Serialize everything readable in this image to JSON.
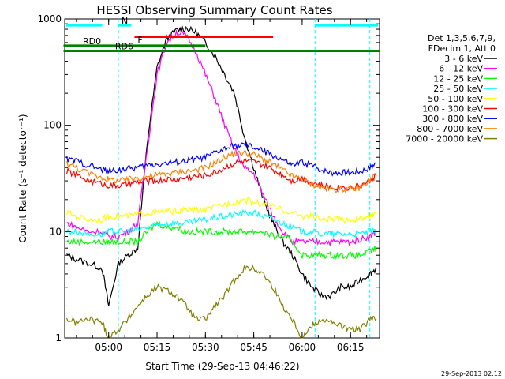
{
  "chart_data": {
    "type": "line",
    "title": "HESSI Observing Summary Count Rates",
    "xlabel": "Start Time (29-Sep-13 04:46:22)",
    "ylabel": "Count Rate (s⁻¹ detector⁻¹)",
    "y_scale": "log",
    "xlim": [
      "04:46:22",
      "06:24:00"
    ],
    "ylim": [
      1,
      1000
    ],
    "x_ticks": [
      "05:00",
      "05:15",
      "05:30",
      "05:45",
      "06:00",
      "06:15"
    ],
    "y_ticks": [
      "1",
      "10",
      "100",
      "1000"
    ],
    "grid": false,
    "legend_position": "right",
    "legend_header": [
      "Det 1,3,5,6,7,9,",
      "FDecim 1, Att 0"
    ],
    "timestamp": "29-Sep-2013 02:12",
    "x": [
      "04:47",
      "04:50",
      "04:54",
      "04:58",
      "05:00",
      "05:03",
      "05:06",
      "05:09",
      "05:12",
      "05:15",
      "05:18",
      "05:21",
      "05:24",
      "05:27",
      "05:30",
      "05:33",
      "05:36",
      "05:39",
      "05:42",
      "05:45",
      "05:48",
      "05:51",
      "05:54",
      "05:57",
      "06:00",
      "06:03",
      "06:06",
      "06:09",
      "06:12",
      "06:15",
      "06:18",
      "06:21",
      "06:23"
    ],
    "series": [
      {
        "name": "3 - 6 keV",
        "color": "#000000",
        "values": [
          6,
          5.5,
          5,
          4.5,
          2,
          5,
          6,
          7,
          70,
          350,
          650,
          780,
          820,
          750,
          600,
          450,
          300,
          200,
          80,
          40,
          20,
          12,
          8,
          6,
          4,
          3,
          2.5,
          2.5,
          3,
          3,
          3.5,
          4,
          4.5
        ]
      },
      {
        "name": "6 - 12 keV",
        "color": "#ff00ff",
        "values": [
          12,
          11,
          10,
          10,
          9,
          9,
          10,
          12,
          60,
          300,
          600,
          750,
          700,
          500,
          300,
          180,
          100,
          60,
          40,
          35,
          22,
          14,
          10,
          8,
          8,
          8,
          8,
          8,
          8,
          8,
          8.5,
          9,
          10
        ]
      },
      {
        "name": "12 - 25 keV",
        "color": "#00ff00",
        "values": [
          8,
          8,
          8,
          8,
          8,
          8,
          8,
          8,
          10,
          12,
          11,
          11,
          10,
          10,
          10,
          10,
          10,
          10,
          10,
          10,
          10,
          9,
          9,
          8,
          6,
          6,
          6,
          6,
          6,
          6,
          6,
          6.5,
          7
        ]
      },
      {
        "name": "25 - 50 keV",
        "color": "#00ffff",
        "values": [
          10,
          10,
          9.5,
          9.5,
          10,
          10,
          10,
          10.5,
          11,
          11.5,
          12,
          12,
          12,
          12.5,
          13,
          13.5,
          14,
          14.5,
          15,
          15,
          14,
          13,
          12,
          11,
          10,
          10,
          9.5,
          9.5,
          9.5,
          9.5,
          9.5,
          10,
          10
        ]
      },
      {
        "name": "50 - 100 keV",
        "color": "#ffff00",
        "values": [
          15,
          14,
          13,
          13,
          14,
          14,
          14,
          14.5,
          15,
          15,
          15.5,
          15.5,
          16,
          16,
          16,
          17,
          18,
          19,
          20,
          19,
          18,
          17,
          16,
          15,
          14,
          14,
          13,
          13,
          13,
          13,
          13,
          14,
          14.5
        ]
      },
      {
        "name": "100 - 300 keV",
        "color": "#ff0000",
        "values": [
          37,
          34,
          30,
          28,
          27,
          27,
          28,
          29,
          30,
          30,
          31,
          31,
          32,
          33,
          34,
          36,
          40,
          44,
          46,
          45,
          42,
          38,
          34,
          30,
          32,
          29,
          27,
          26,
          26,
          26,
          27,
          30,
          34
        ]
      },
      {
        "name": "300 - 800 keV",
        "color": "#0000ff",
        "values": [
          48,
          46,
          42,
          38,
          37,
          38,
          39,
          40,
          42,
          43,
          44,
          45,
          46,
          48,
          50,
          55,
          60,
          64,
          65,
          62,
          57,
          52,
          47,
          42,
          45,
          42,
          38,
          36,
          36,
          36,
          37,
          40,
          44
        ]
      },
      {
        "name": "800 - 7000 keV",
        "color": "#ff8000",
        "values": [
          44,
          40,
          35,
          32,
          31,
          30,
          31,
          32,
          33,
          34,
          35,
          36,
          37,
          38,
          40,
          44,
          50,
          54,
          55,
          53,
          48,
          43,
          38,
          33,
          31,
          28,
          26,
          25,
          25,
          25,
          26,
          30,
          36
        ]
      },
      {
        "name": "7000 - 20000 keV",
        "color": "#808000",
        "values": [
          1.5,
          1.4,
          1.5,
          1.4,
          1,
          1.2,
          1.5,
          2,
          2.5,
          3,
          2.8,
          2.5,
          2,
          1.5,
          1.5,
          2,
          2.5,
          3.5,
          4.5,
          4.5,
          4,
          3,
          2,
          1.5,
          1,
          1.3,
          1.5,
          1.4,
          1.3,
          1.2,
          1.2,
          1.5,
          1.5
        ]
      }
    ],
    "annotations": [
      {
        "label": "N",
        "color": "#00ffff",
        "start": "05:03",
        "end": "05:07",
        "level": 870
      },
      {
        "label": "F",
        "color": "#ff0000",
        "start": "05:08",
        "end": "05:51",
        "level": 680
      },
      {
        "label": "RD0",
        "color": "#008000",
        "start": "04:46",
        "end": "05:30",
        "level": 560
      },
      {
        "label": "RD6",
        "color": "#008000",
        "start": "04:46",
        "end": "06:24",
        "level": 500
      }
    ]
  }
}
